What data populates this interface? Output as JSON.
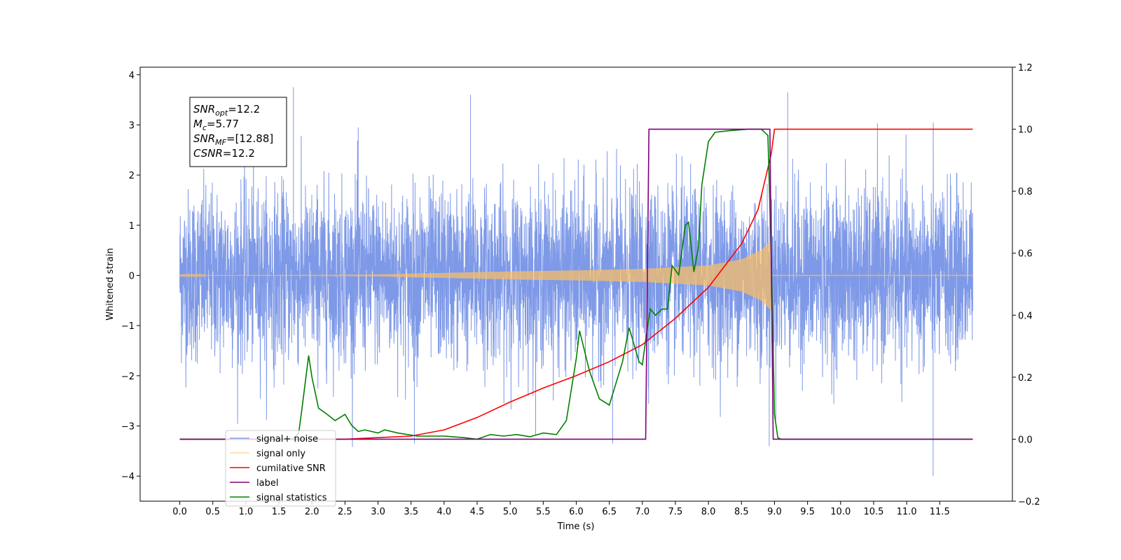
{
  "chart_data": {
    "type": "line",
    "xlabel": "Time (s)",
    "ylabel": "Whitened strain",
    "y2label": "",
    "xlim": [
      -0.6,
      12.6
    ],
    "ylim": [
      -4.5,
      4.15
    ],
    "y2lim": [
      -0.2,
      1.2
    ],
    "grid": false,
    "legend_position": "lower-left",
    "x_ticks": [
      "0.0",
      "0.5",
      "1.0",
      "1.5",
      "2.0",
      "2.5",
      "3.0",
      "3.5",
      "4.0",
      "4.5",
      "5.0",
      "5.5",
      "6.0",
      "6.5",
      "7.0",
      "7.5",
      "8.0",
      "8.5",
      "9.0",
      "9.5",
      "10.0",
      "10.5",
      "11.0",
      "11.5"
    ],
    "y_ticks": [
      "4",
      "3",
      "2",
      "1",
      "0",
      "−1",
      "−2",
      "−3",
      "−4"
    ],
    "y2_ticks": [
      "1.2",
      "1.0",
      "0.8",
      "0.6",
      "0.4",
      "0.2",
      "0.0",
      "−0.2"
    ],
    "annotation": {
      "lines": [
        {
          "var": "SNR",
          "sub": "opt",
          "value": "=12.2"
        },
        {
          "var": "M",
          "sub": "c",
          "value": "=5.77"
        },
        {
          "var": "SNR",
          "sub": "MF",
          "value": "=[12.88]"
        },
        {
          "var": "CSNR",
          "sub": "",
          "value": "=12.2"
        }
      ]
    },
    "series": [
      {
        "name": "signal+ noise",
        "color": "#7793e6",
        "axis": "left",
        "x_range": [
          0.0,
          12.0
        ],
        "noise_amplitude_typical": 1.7,
        "min": -4.0,
        "max": 3.75,
        "spikes": [
          [
            1.72,
            3.75
          ],
          [
            4.4,
            3.6
          ],
          [
            9.2,
            3.65
          ],
          [
            11.4,
            -4.0
          ],
          [
            3.55,
            -3.35
          ],
          [
            8.92,
            -3.4
          ],
          [
            6.55,
            -3.35
          ],
          [
            2.7,
            2.95
          ]
        ]
      },
      {
        "name": "signal only",
        "color": "#ffbf5f",
        "axis": "left",
        "x_range": [
          0.0,
          12.0
        ],
        "chirp_end": 8.95,
        "envelope": [
          [
            0.0,
            0.005
          ],
          [
            2.0,
            0.01
          ],
          [
            3.0,
            0.02
          ],
          [
            4.0,
            0.05
          ],
          [
            5.0,
            0.08
          ],
          [
            6.0,
            0.1
          ],
          [
            7.0,
            0.13
          ],
          [
            8.0,
            0.2
          ],
          [
            8.5,
            0.32
          ],
          [
            8.8,
            0.5
          ],
          [
            8.95,
            0.7
          ]
        ]
      },
      {
        "name": "cumilative SNR",
        "color": "#ff0000",
        "axis": "right",
        "points": [
          [
            0.0,
            0.0
          ],
          [
            2.5,
            0.0
          ],
          [
            3.0,
            0.005
          ],
          [
            3.5,
            0.01
          ],
          [
            4.0,
            0.03
          ],
          [
            4.5,
            0.07
          ],
          [
            5.0,
            0.12
          ],
          [
            5.5,
            0.165
          ],
          [
            6.0,
            0.205
          ],
          [
            6.5,
            0.25
          ],
          [
            7.0,
            0.305
          ],
          [
            7.5,
            0.39
          ],
          [
            8.0,
            0.49
          ],
          [
            8.5,
            0.63
          ],
          [
            8.75,
            0.74
          ],
          [
            8.95,
            0.92
          ],
          [
            9.0,
            1.0
          ],
          [
            12.0,
            1.0
          ]
        ]
      },
      {
        "name": "label",
        "color": "#800080",
        "axis": "right",
        "points": [
          [
            0.0,
            0.0
          ],
          [
            7.05,
            0.0
          ],
          [
            7.1,
            1.0
          ],
          [
            8.93,
            1.0
          ],
          [
            8.98,
            0.0
          ],
          [
            12.0,
            0.0
          ]
        ]
      },
      {
        "name": "signal statistics",
        "color": "#008000",
        "axis": "right",
        "points": [
          [
            0.0,
            0.0
          ],
          [
            1.7,
            0.0
          ],
          [
            1.8,
            0.02
          ],
          [
            1.85,
            0.1
          ],
          [
            1.95,
            0.27
          ],
          [
            2.0,
            0.2
          ],
          [
            2.1,
            0.1
          ],
          [
            2.2,
            0.085
          ],
          [
            2.35,
            0.06
          ],
          [
            2.5,
            0.08
          ],
          [
            2.6,
            0.045
          ],
          [
            2.7,
            0.025
          ],
          [
            2.8,
            0.03
          ],
          [
            3.0,
            0.02
          ],
          [
            3.1,
            0.03
          ],
          [
            3.3,
            0.02
          ],
          [
            3.6,
            0.01
          ],
          [
            4.0,
            0.01
          ],
          [
            4.3,
            0.005
          ],
          [
            4.5,
            0.0
          ],
          [
            4.7,
            0.015
          ],
          [
            4.9,
            0.01
          ],
          [
            5.1,
            0.015
          ],
          [
            5.3,
            0.008
          ],
          [
            5.5,
            0.02
          ],
          [
            5.7,
            0.015
          ],
          [
            5.85,
            0.06
          ],
          [
            6.0,
            0.26
          ],
          [
            6.05,
            0.35
          ],
          [
            6.2,
            0.22
          ],
          [
            6.35,
            0.13
          ],
          [
            6.5,
            0.11
          ],
          [
            6.7,
            0.25
          ],
          [
            6.8,
            0.36
          ],
          [
            6.95,
            0.25
          ],
          [
            7.0,
            0.24
          ],
          [
            7.05,
            0.32
          ],
          [
            7.12,
            0.42
          ],
          [
            7.2,
            0.4
          ],
          [
            7.3,
            0.42
          ],
          [
            7.38,
            0.42
          ],
          [
            7.45,
            0.56
          ],
          [
            7.55,
            0.53
          ],
          [
            7.65,
            0.69
          ],
          [
            7.7,
            0.7
          ],
          [
            7.78,
            0.54
          ],
          [
            7.85,
            0.62
          ],
          [
            7.9,
            0.82
          ],
          [
            8.0,
            0.96
          ],
          [
            8.1,
            0.99
          ],
          [
            8.3,
            0.995
          ],
          [
            8.6,
            1.0
          ],
          [
            8.8,
            1.0
          ],
          [
            8.9,
            0.98
          ],
          [
            8.95,
            0.6
          ],
          [
            9.0,
            0.08
          ],
          [
            9.05,
            0.005
          ],
          [
            9.1,
            0.0
          ],
          [
            12.0,
            0.0
          ]
        ]
      }
    ]
  }
}
